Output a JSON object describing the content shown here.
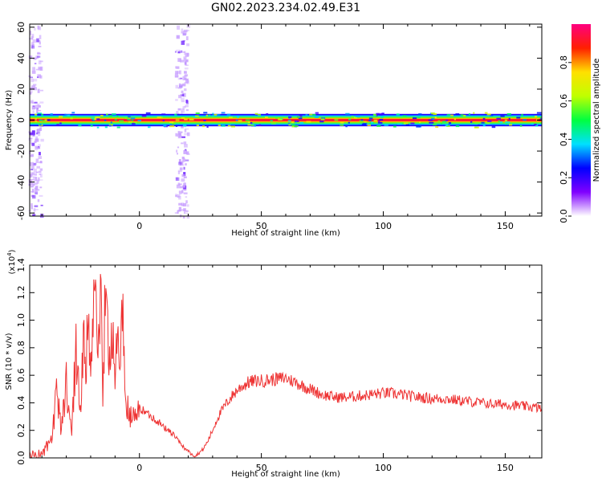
{
  "figure": {
    "title": "GN02.2023.234.02.49.E31"
  },
  "chart_data": [
    {
      "type": "heatmap",
      "title": "GN02.2023.234.02.49.E31",
      "xlabel": "Height of straight line (km)",
      "ylabel": "Frequency (Hz)",
      "xlim": [
        -45,
        165
      ],
      "ylim": [
        -62,
        62
      ],
      "x_ticks": [
        0,
        50,
        100,
        150
      ],
      "y_ticks": [
        60,
        40,
        20,
        0,
        -20,
        -40,
        -60
      ],
      "colorbar": {
        "label": "Normalized spectral amplitude",
        "range": [
          0.0,
          1.0
        ],
        "ticks": [
          "0.0",
          "0.2",
          "0.4",
          "0.6",
          "0.8"
        ],
        "tick_values": [
          0.0,
          0.2,
          0.4,
          0.6,
          0.8
        ],
        "colors": [
          "#ffffff",
          "#8000ff",
          "#0000ff",
          "#00e0ff",
          "#00ff40",
          "#c0ff00",
          "#ffe000",
          "#ff2000",
          "#ff0080"
        ]
      },
      "band": {
        "center_hz": 0,
        "halfwidth_hz": 4,
        "x_range": [
          -45,
          165
        ],
        "peak_amplitude": 1.0
      },
      "vertical_streaks": [
        {
          "x": -43,
          "amplitude": 0.2
        },
        {
          "x": 17,
          "amplitude": 0.25
        }
      ]
    },
    {
      "type": "line",
      "xlabel": "Height of straight line (km)",
      "ylabel": "SNR (10 * v/v)",
      "y_scale_label": "(x10",
      "y_scale_exp": "4",
      "y_scale_suffix": ")",
      "xlim": [
        -45,
        165
      ],
      "ylim": [
        0.0,
        1.4
      ],
      "x_ticks": [
        0,
        50,
        100,
        150
      ],
      "y_ticks": [
        0.0,
        0.2,
        0.4,
        0.6,
        0.8,
        1.0,
        1.2,
        1.4
      ],
      "color": "#ee3333",
      "series": [
        {
          "x": [
            -45,
            -40,
            -36,
            -34,
            -32,
            -30,
            -28,
            -26,
            -24,
            -23,
            -22,
            -21,
            -20,
            -19,
            -18,
            -17,
            -16,
            -15,
            -14,
            -13,
            -12,
            -11,
            -10,
            -9,
            -8,
            -7,
            -6,
            -5,
            -4,
            -3,
            -2,
            0,
            2,
            5,
            8,
            10,
            12,
            14,
            16,
            18,
            20,
            21,
            22,
            23,
            24,
            26,
            28,
            30,
            32,
            35,
            38,
            40,
            42,
            45,
            48,
            50,
            55,
            60,
            65,
            70,
            75,
            80,
            85,
            90,
            95,
            100,
            103,
            106,
            108,
            110,
            115,
            120,
            125,
            130,
            135,
            140,
            145,
            150,
            155,
            160,
            165
          ],
          "y": [
            0.02,
            0.03,
            0.12,
            0.45,
            0.22,
            0.55,
            0.18,
            0.78,
            0.3,
            0.95,
            0.55,
            1.1,
            0.45,
            1.05,
            1.4,
            0.65,
            1.2,
            0.5,
            1.15,
            0.9,
            0.7,
            1.0,
            0.55,
            0.9,
            0.6,
            1.18,
            0.5,
            0.35,
            0.32,
            0.3,
            0.28,
            0.36,
            0.34,
            0.3,
            0.26,
            0.22,
            0.2,
            0.17,
            0.12,
            0.08,
            0.05,
            0.03,
            0.02,
            0.015,
            0.03,
            0.06,
            0.12,
            0.2,
            0.29,
            0.38,
            0.45,
            0.49,
            0.52,
            0.55,
            0.56,
            0.56,
            0.57,
            0.58,
            0.54,
            0.5,
            0.46,
            0.44,
            0.44,
            0.45,
            0.46,
            0.47,
            0.47,
            0.46,
            0.46,
            0.45,
            0.44,
            0.43,
            0.43,
            0.42,
            0.41,
            0.4,
            0.39,
            0.39,
            0.38,
            0.37,
            0.36
          ]
        }
      ]
    }
  ]
}
